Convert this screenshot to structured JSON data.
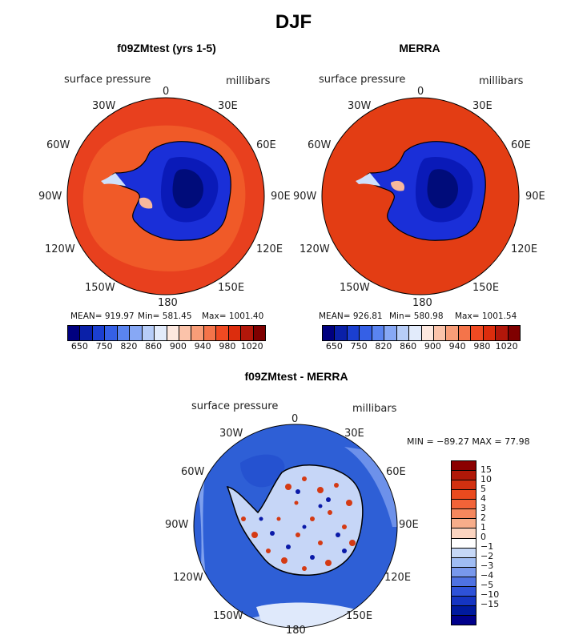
{
  "title": "DJF",
  "panels": {
    "model": {
      "title": "f09ZMtest (yrs 1-5)",
      "variable": "surface pressure",
      "units": "millibars",
      "stats": {
        "mean": "MEAN= 919.97",
        "min": "Min= 581.45",
        "max": "Max= 1001.40"
      },
      "colors": {
        "ocean": "#e8401e",
        "inner_ring": "#f05a28"
      }
    },
    "obs": {
      "title": "MERRA",
      "variable": "surface pressure",
      "units": "millibars",
      "stats": {
        "mean": "MEAN= 926.81",
        "min": "Min= 580.98",
        "max": "Max= 1001.54"
      },
      "colors": {
        "ocean": "#e33d14",
        "inner_ring": "#e33d14"
      }
    },
    "diff": {
      "title": "f09ZMtest - MERRA",
      "variable": "surface pressure",
      "units": "millibars",
      "minmax": "MIN = −89.27 MAX =  77.98",
      "colors": {
        "ocean": "#2e5fd6",
        "inner_ring": "#2552d0"
      }
    }
  },
  "lon_labels": {
    "top": "0",
    "n30e": "30E",
    "n60e": "60E",
    "e90": "90E",
    "s120e": "120E",
    "s150e": "150E",
    "bottom": "180",
    "s150w": "150W",
    "s120w": "120W",
    "w90": "90W",
    "n60w": "60W",
    "n30w": "30W"
  },
  "colorbar": {
    "colors": [
      "#00007f",
      "#0a20a8",
      "#1b3fd0",
      "#3560e6",
      "#5a84f0",
      "#87a8f5",
      "#b7cdf8",
      "#e2ebfb",
      "#fde8df",
      "#fbc3aa",
      "#f89d78",
      "#f4744a",
      "#ef4a22",
      "#dc2d0d",
      "#b2170a",
      "#7f0000"
    ],
    "tick_labels": [
      "650",
      "750",
      "820",
      "860",
      "900",
      "940",
      "980",
      "1020"
    ]
  },
  "diff_colorbar": {
    "colors": [
      "#8b0000",
      "#b01808",
      "#d23010",
      "#ea4a1e",
      "#f26338",
      "#f5875d",
      "#f7ad8a",
      "#fbd4c0",
      "#ffffff",
      "#c6d8f7",
      "#9fbcf3",
      "#7898ec",
      "#4f72e2",
      "#2e52d8",
      "#1535c2",
      "#001a9e",
      "#00008b"
    ],
    "tick_labels": [
      "15",
      "10",
      "5",
      "4",
      "3",
      "2",
      "1",
      "0",
      "−1",
      "−2",
      "−3",
      "−4",
      "−5",
      "−10",
      "−15"
    ]
  },
  "chart_data": [
    {
      "type": "heatmap",
      "title": "f09ZMtest (yrs 1-5)",
      "variable": "surface pressure",
      "units": "millibars",
      "stats": {
        "mean": 919.97,
        "min": 581.45,
        "max": 1001.4
      },
      "contour_levels": [
        650,
        700,
        750,
        780,
        820,
        840,
        860,
        880,
        900,
        920,
        940,
        960,
        980,
        1000,
        1020
      ],
      "projection": "south polar stereographic"
    },
    {
      "type": "heatmap",
      "title": "MERRA",
      "variable": "surface pressure",
      "units": "millibars",
      "stats": {
        "mean": 926.81,
        "min": 580.98,
        "max": 1001.54
      },
      "contour_levels": [
        650,
        700,
        750,
        780,
        820,
        840,
        860,
        880,
        900,
        920,
        940,
        960,
        980,
        1000,
        1020
      ],
      "projection": "south polar stereographic"
    },
    {
      "type": "heatmap",
      "title": "f09ZMtest - MERRA",
      "variable": "surface pressure",
      "units": "millibars",
      "stats": {
        "min": -89.27,
        "max": 77.98
      },
      "contour_levels": [
        -15,
        -10,
        -5,
        -4,
        -3,
        -2,
        -1,
        0,
        1,
        2,
        3,
        4,
        5,
        10,
        15
      ],
      "projection": "south polar stereographic"
    }
  ]
}
